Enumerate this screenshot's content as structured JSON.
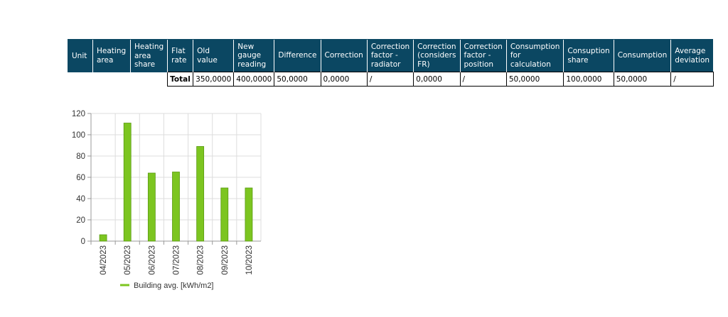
{
  "table": {
    "headers": [
      "Unit",
      "Heating area",
      "Heating area share",
      "Flat rate",
      "Old value",
      "New gauge reading",
      "Difference",
      "Correction",
      "Correction factor - radiator",
      "Correction (considers FR)",
      "Correction factor - position",
      "Consumption for calculation",
      "Consuption share",
      "Consumption",
      "Average deviation"
    ],
    "header_lines": [
      [
        "Unit"
      ],
      [
        "Heating",
        "area"
      ],
      [
        "Heating",
        "area",
        "share"
      ],
      [
        "Flat",
        "rate"
      ],
      [
        "Old",
        "value"
      ],
      [
        "New",
        "gauge",
        "reading"
      ],
      [
        "Difference"
      ],
      [
        "Correction"
      ],
      [
        "Correction",
        "factor -",
        "radiator"
      ],
      [
        "Correction",
        "(considers",
        "FR)"
      ],
      [
        "Correction",
        "factor -",
        "position"
      ],
      [
        "Consumption",
        "for",
        "calculation"
      ],
      [
        "Consuption",
        "share"
      ],
      [
        "Consumption"
      ],
      [
        "Average",
        "deviation"
      ]
    ],
    "total_row": {
      "label": "Total",
      "old_value": "350,0000",
      "new_gauge_reading": "400,0000",
      "difference": "50,0000",
      "correction": "0,0000",
      "correction_factor_radiator": "/",
      "correction_considers_fr": "0,0000",
      "correction_factor_position": "/",
      "consumption_for_calculation": "50,0000",
      "consumption_share": "100,0000",
      "consumption": "50,0000",
      "average_deviation": "/"
    }
  },
  "chart_data": {
    "type": "bar",
    "categories": [
      "04/2023",
      "05/2023",
      "06/2023",
      "07/2023",
      "08/2023",
      "09/2023",
      "10/2023"
    ],
    "series": [
      {
        "name": "Building avg. [kWh/m2]",
        "values": [
          6,
          111,
          64,
          65,
          89,
          50,
          50
        ],
        "color": "#7cc520"
      }
    ],
    "ylim": [
      0,
      120
    ],
    "yticks": [
      0,
      20,
      40,
      60,
      80,
      100,
      120
    ],
    "title": "",
    "xlabel": "",
    "ylabel": "",
    "grid": true,
    "legend": "bottom"
  },
  "colors": {
    "header_bg": "#0b4762",
    "bar_fill": "#7cc520",
    "bar_stroke": "#5a9a12",
    "grid": "#dddddd"
  }
}
